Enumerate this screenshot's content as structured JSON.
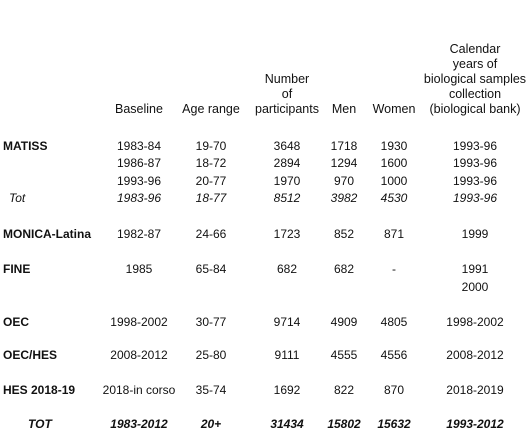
{
  "table": {
    "headers": [
      [
        "Baseline"
      ],
      [
        "Age range"
      ],
      [
        "Number",
        "of",
        "participants"
      ],
      [
        "Men"
      ],
      [
        "Women"
      ],
      [
        "Calendar",
        "years of",
        "biological samples",
        "collection",
        "(biological bank)"
      ]
    ],
    "rows": [
      {
        "label": "MATISS",
        "cells": [
          "1983-84",
          "19-70",
          "3648",
          "1718",
          "1930",
          "1993-96"
        ]
      },
      {
        "cells": [
          "1986-87",
          "18-72",
          "2894",
          "1294",
          "1600",
          "1993-96"
        ]
      },
      {
        "cells": [
          "1993-96",
          "20-77",
          "1970",
          "970",
          "1000",
          "1993-96"
        ]
      },
      {
        "label": "Tot",
        "cells": [
          "1983-96",
          "18-77",
          "8512",
          "3982",
          "4530",
          "1993-96"
        ]
      },
      {
        "label": "MONICA-Latina",
        "cells": [
          "1982-87",
          "24-66",
          "1723",
          "852",
          "871",
          "1999"
        ]
      },
      {
        "label": "FINE",
        "cells": [
          "1985",
          "65-84",
          "682",
          "682",
          "-",
          [
            "1991",
            "2000"
          ]
        ]
      },
      {
        "label": "OEC",
        "cells": [
          "1998-2002",
          "30-77",
          "9714",
          "4909",
          "4805",
          "1998-2002"
        ]
      },
      {
        "label": "OEC/HES",
        "cells": [
          "2008-2012",
          "25-80",
          "9111",
          "4555",
          "4556",
          "2008-2012"
        ]
      },
      {
        "label": "HES 2018-19",
        "cells": [
          "2018-in corso",
          "35-74",
          "1692",
          "822",
          "870",
          "2018-2019"
        ]
      },
      {
        "label": "TOT",
        "cells": [
          "1983-2012",
          "20+",
          "31434",
          "15802",
          "15632",
          "1993-2012"
        ]
      }
    ]
  }
}
